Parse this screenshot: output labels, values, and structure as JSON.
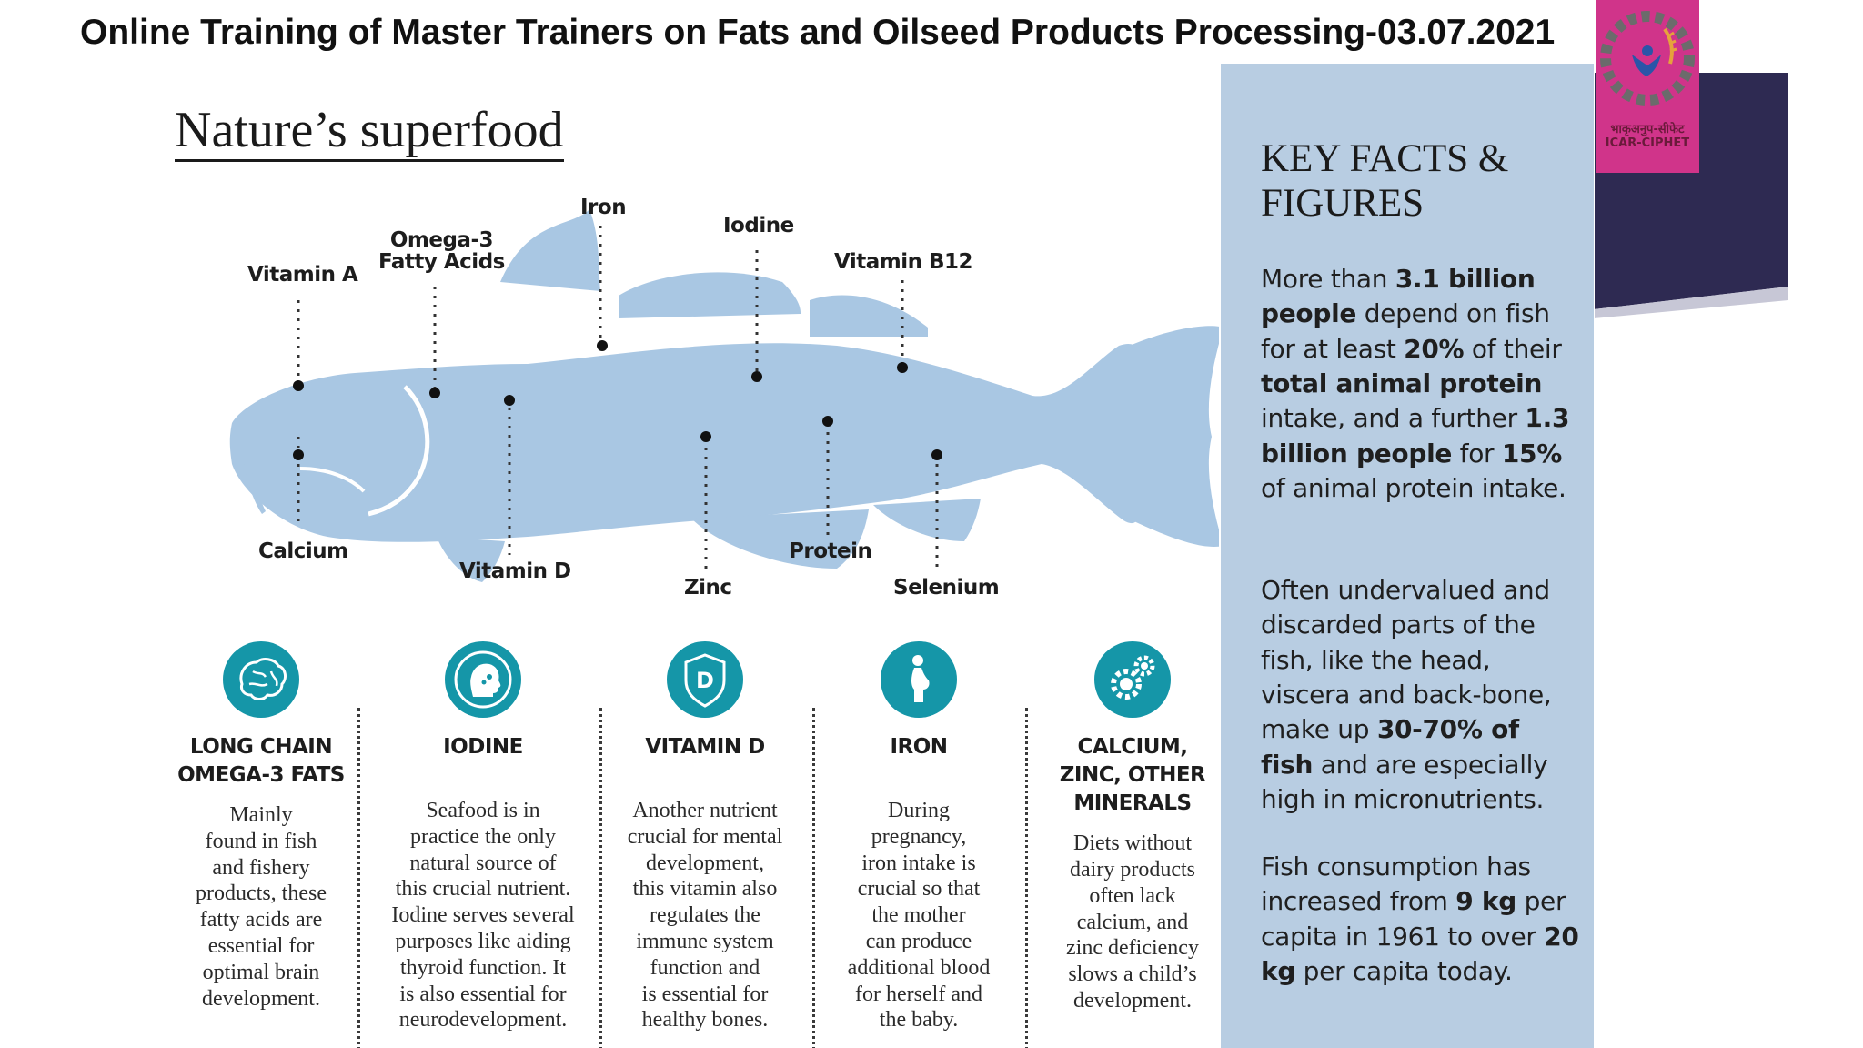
{
  "slide_title": "Online Training of Master Trainers on Fats and Oilseed Products Processing-03.07.2021",
  "infographic": {
    "title": "Nature’s superfood",
    "nutrients": {
      "vitamin_a": "Vitamin A",
      "omega3_line1": "Omega-3",
      "omega3_line2": "Fatty Acids",
      "iron": "Iron",
      "iodine": "Iodine",
      "vitamin_b12": "Vitamin B12",
      "calcium": "Calcium",
      "vitamin_d": "Vitamin D",
      "zinc": "Zinc",
      "protein": "Protein",
      "selenium": "Selenium"
    },
    "columns": [
      {
        "icon": "brain-icon",
        "heading_line1": "LONG CHAIN",
        "heading_line2": "OMEGA-3 FATS",
        "body": [
          "Mainly",
          "found in fish",
          "and fishery",
          "products, these",
          "fatty acids are",
          "essential for",
          "optimal brain",
          "development."
        ]
      },
      {
        "icon": "head-profile-icon",
        "heading_line1": "IODINE",
        "body": [
          "Seafood is in",
          "practice the only",
          "natural source of",
          "this crucial nutrient.",
          "Iodine serves several",
          "purposes like aiding",
          "thyroid function. It",
          "is also essential for",
          "neurodevelopment."
        ]
      },
      {
        "icon": "vitamin-d-shield-icon",
        "heading_line1": "VITAMIN D",
        "body": [
          "Another nutrient",
          "crucial for mental",
          "development,",
          "this vitamin also",
          "regulates the",
          "immune system",
          "function and",
          "is essential for",
          "healthy bones."
        ]
      },
      {
        "icon": "pregnant-woman-icon",
        "heading_line1": "IRON",
        "body": [
          "During",
          "pregnancy,",
          "iron intake is",
          "crucial so that",
          "the mother",
          "can produce",
          "additional blood",
          "for herself and",
          "the baby."
        ]
      },
      {
        "icon": "gears-icon",
        "heading_line1": "CALCIUM,",
        "heading_line2": "ZINC, OTHER",
        "heading_line3": "MINERALS",
        "body": [
          "Diets without",
          "dairy products",
          "often lack",
          "calcium, and",
          "zinc deficiency",
          "slows a child’s",
          "development."
        ]
      }
    ]
  },
  "key_facts": {
    "title_line1": "KEY FACTS &",
    "title_line2": "FIGURES",
    "p1": {
      "t1": "More than ",
      "b1": "3.1 billion people",
      "t2": " depend on fish for at least ",
      "b2": "20%",
      "t3": " of their ",
      "b3": "total animal protein",
      "t4": " intake, and a further ",
      "b4": "1.3 billion people",
      "t5": " for ",
      "b5": "15%",
      "t6": " of animal protein intake."
    },
    "p2": {
      "t1": "Often undervalued and discarded parts of the fish, like the head, viscera and back-bone, make up ",
      "b1": "30-70% of fish",
      "t2": " and are especially high in micronutrients."
    },
    "p3": {
      "t1": "Fish consumption has increased from ",
      "b1": "9 kg",
      "t2": " per capita in 1961 to over ",
      "b2": "20 kg",
      "t3": " per capita today."
    }
  },
  "logo": {
    "hindi_text": "भाकृअनुप-सीफेट",
    "english_text": "ICAR-CIPHET"
  },
  "colors": {
    "fish": "#a9c7e3",
    "facts_panel": "#b8cde2",
    "icon_teal": "#1596a8",
    "logo_pink": "#d0348a",
    "deco_purple": "#2e2a52"
  }
}
